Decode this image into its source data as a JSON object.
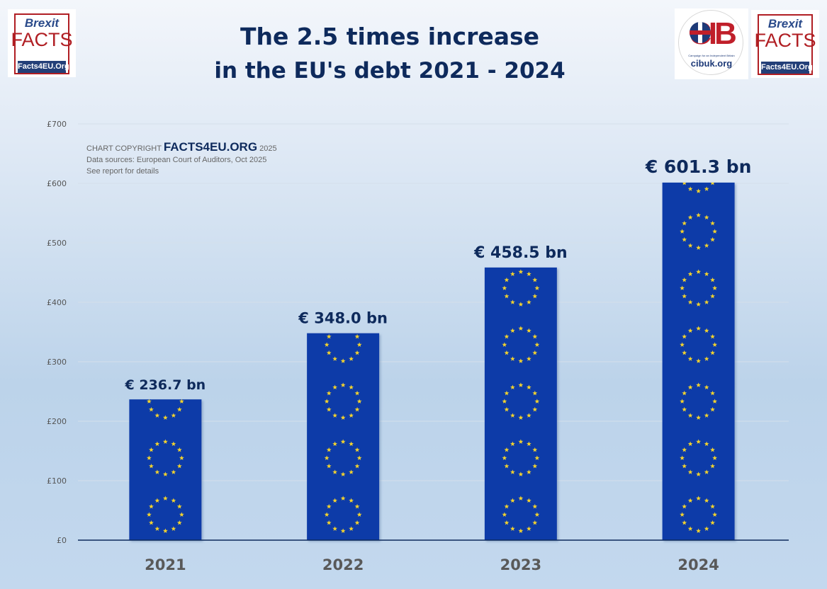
{
  "title": {
    "line1": "The 2.5 times increase",
    "line2": "in the EU's debt 2021 - 2024"
  },
  "logos": {
    "brexit_facts": {
      "brexit": "Brexit",
      "facts": "FACTS",
      "site": "Facts4EU.Org"
    },
    "cib": {
      "letters": "CIB",
      "tagline": "Campaign for an Independent Britain",
      "site": "cibuk.org"
    }
  },
  "copyright": {
    "prefix": "CHART COPYRIGHT",
    "brand": "FACTS4EU.ORG",
    "year": "2025",
    "source": "Data sources: European Court of Auditors, Oct 2025",
    "note": "See report for details"
  },
  "colors": {
    "bar_fill": "#0a3aa8",
    "star": "#f2d22e",
    "title": "#0e2a5c",
    "axis_line": "#0e2a5c"
  },
  "chart_data": {
    "type": "bar",
    "title": "The 2.5 times increase in the EU's debt 2021 - 2024",
    "xlabel": "",
    "ylabel": "",
    "categories": [
      "2021",
      "2022",
      "2023",
      "2024"
    ],
    "values": [
      236.7,
      348.0,
      458.5,
      601.3
    ],
    "value_labels": [
      "€ 236.7 bn",
      "€ 348.0 bn",
      "€ 458.5 bn",
      "€ 601.3 bn"
    ],
    "unit": "billion EUR",
    "ylim": [
      0,
      700
    ],
    "yticks": [
      0,
      100,
      200,
      300,
      400,
      500,
      600,
      700
    ],
    "ytick_labels": [
      "£0",
      "£100",
      "£200",
      "£300",
      "£400",
      "£500",
      "£600",
      "£700"
    ],
    "grid": true,
    "legend": "none",
    "bar_style": "EU flag pattern"
  }
}
